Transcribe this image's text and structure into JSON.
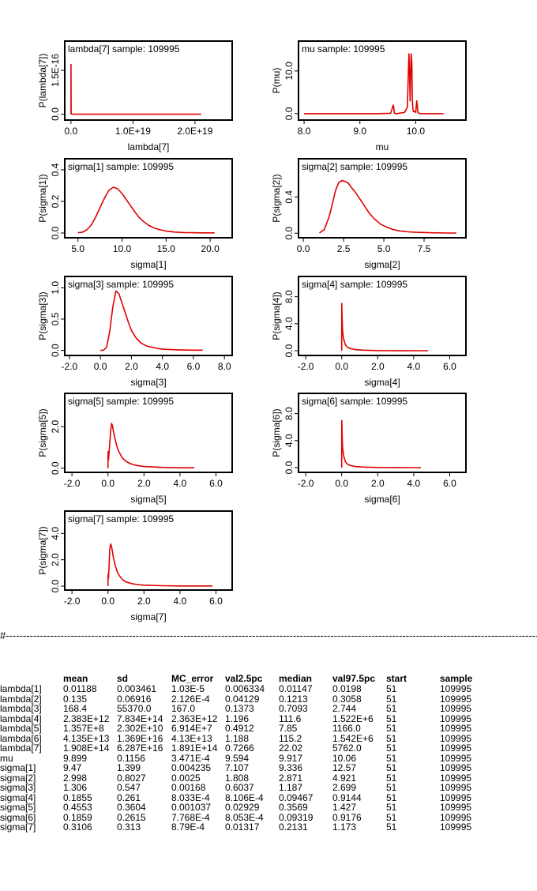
{
  "panels": [
    {
      "id": "lambda7",
      "title": "lambda[7] sample: 109995",
      "xlabel": "lambda[7]",
      "ylabel": "P(lambda[7])",
      "xticks": [
        "0.0",
        "1.0E+19",
        "2.0E+19"
      ],
      "yticks": [
        "0.0",
        "1.5E-16"
      ]
    },
    {
      "id": "mu",
      "title": "mu sample: 109995",
      "xlabel": "mu",
      "ylabel": "P(mu)",
      "xticks": [
        "8.0",
        "9.0",
        "10.0"
      ],
      "yticks": [
        "0.0",
        "10.0"
      ]
    },
    {
      "id": "sigma1",
      "title": "sigma[1] sample: 109995",
      "xlabel": "sigma[1]",
      "ylabel": "P(sigma[1])",
      "xticks": [
        "5.0",
        "10.0",
        "15.0",
        "20.0"
      ],
      "yticks": [
        "0.0",
        "0.2",
        "0.4"
      ]
    },
    {
      "id": "sigma2",
      "title": "sigma[2] sample: 109995",
      "xlabel": "sigma[2]",
      "ylabel": "P(sigma[2])",
      "xticks": [
        "0.0",
        "2.5",
        "5.0",
        "7.5"
      ],
      "yticks": [
        "0.0",
        "0.4"
      ]
    },
    {
      "id": "sigma3",
      "title": "sigma[3] sample: 109995",
      "xlabel": "sigma[3]",
      "ylabel": "P(sigma[3])",
      "xticks": [
        "-2.0",
        "0.0",
        "2.0",
        "4.0",
        "6.0",
        "8.0"
      ],
      "yticks": [
        "0.0",
        "0.5",
        "1.0"
      ]
    },
    {
      "id": "sigma4",
      "title": "sigma[4] sample: 109995",
      "xlabel": "sigma[4]",
      "ylabel": "P(sigma[4])",
      "xticks": [
        "-2.0",
        "0.0",
        "2.0",
        "4.0",
        "6.0"
      ],
      "yticks": [
        "0.0",
        "4.0",
        "8.0"
      ]
    },
    {
      "id": "sigma5",
      "title": "sigma[5] sample: 109995",
      "xlabel": "sigma[5]",
      "ylabel": "P(sigma[5])",
      "xticks": [
        "-2.0",
        "0.0",
        "2.0",
        "4.0",
        "6.0"
      ],
      "yticks": [
        "0.0",
        "2.0"
      ]
    },
    {
      "id": "sigma6",
      "title": "sigma[6] sample: 109995",
      "xlabel": "sigma[6]",
      "ylabel": "P(sigma[6])",
      "xticks": [
        "-2.0",
        "0.0",
        "2.0",
        "4.0",
        "6.0"
      ],
      "yticks": [
        "0.0",
        "4.0",
        "8.0"
      ]
    },
    {
      "id": "sigma7",
      "title": "sigma[7] sample: 109995",
      "xlabel": "sigma[7]",
      "ylabel": "P(sigma[7])",
      "xticks": [
        "-2.0",
        "0.0",
        "2.0",
        "4.0",
        "6.0"
      ],
      "yticks": [
        "0.0",
        "2.0",
        "4.0"
      ]
    }
  ],
  "divider_text": "#------------------------------------------------------------------------------------------------------------------------------------------------------------------------",
  "table": {
    "headers": [
      "",
      "mean",
      "sd",
      "MC_error",
      "val2.5pc",
      "median",
      "val97.5pc",
      "start",
      "sample"
    ],
    "rows": [
      [
        "lambda[1]",
        "0.01188",
        "0.003461",
        "1.03E-5",
        "0.006334",
        "0.01147",
        "0.0198",
        "51",
        "109995"
      ],
      [
        "lambda[2]",
        "0.135",
        "0.06916",
        "2.126E-4",
        "0.04129",
        "0.1213",
        "0.3058",
        "51",
        "109995"
      ],
      [
        "lambda[3]",
        "168.4",
        "55370.0",
        "167.0",
        "0.1373",
        "0.7093",
        "2.744",
        "51",
        "109995"
      ],
      [
        "lambda[4]",
        "2.383E+12",
        "7.834E+14",
        "2.363E+12",
        "1.196",
        "111.6",
        "1.522E+6",
        "51",
        "109995"
      ],
      [
        "lambda[5]",
        "1.357E+8",
        "2.302E+10",
        "6.914E+7",
        "0.4912",
        "7.85",
        "1166.0",
        "51",
        "109995"
      ],
      [
        "lambda[6]",
        "4.135E+13",
        "1.369E+16",
        "4.13E+13",
        "1.188",
        "115.2",
        "1.542E+6",
        "51",
        "109995"
      ],
      [
        "lambda[7]",
        "1.908E+14",
        "6.287E+16",
        "1.891E+14",
        "0.7266",
        "22.02",
        "5762.0",
        "51",
        "109995"
      ],
      [
        "mu",
        "9.899",
        "0.1156",
        "3.471E-4",
        "9.594",
        "9.917",
        "10.06",
        "51",
        "109995"
      ],
      [
        "sigma[1]",
        "9.47",
        "1.399",
        "0.004235",
        "7.107",
        "9.336",
        "12.57",
        "51",
        "109995"
      ],
      [
        "sigma[2]",
        "2.998",
        "0.8027",
        "0.0025",
        "1.808",
        "2.871",
        "4.921",
        "51",
        "109995"
      ],
      [
        "sigma[3]",
        "1.306",
        "0.547",
        "0.00168",
        "0.6037",
        "1.187",
        "2.699",
        "51",
        "109995"
      ],
      [
        "sigma[4]",
        "0.1855",
        "0.261",
        "8.033E-4",
        "8.106E-4",
        "0.09467",
        "0.9144",
        "51",
        "109995"
      ],
      [
        "sigma[5]",
        "0.4553",
        "0.3604",
        "0.001037",
        "0.02929",
        "0.3569",
        "1.427",
        "51",
        "109995"
      ],
      [
        "sigma[6]",
        "0.1859",
        "0.2615",
        "7.768E-4",
        "8.053E-4",
        "0.09319",
        "0.9176",
        "51",
        "109995"
      ],
      [
        "sigma[7]",
        "0.3106",
        "0.313",
        "8.79E-4",
        "0.01317",
        "0.2131",
        "1.173",
        "51",
        "109995"
      ]
    ]
  },
  "chart_data": [
    {
      "type": "line",
      "title": "lambda[7] sample: 109995",
      "xlabel": "lambda[7]",
      "ylabel": "P(lambda[7])",
      "xlim": [
        -1e+18,
        2.6e+19
      ],
      "ylim": [
        -2e-17,
        2.5e-16
      ],
      "color": "#e00000",
      "x": [
        0,
        0,
        3e+16,
        2e+17,
        2.1e+19
      ],
      "y": [
        0,
        1.7e-16,
        1e-18,
        0,
        0
      ]
    },
    {
      "type": "line",
      "title": "mu sample: 109995",
      "xlabel": "mu",
      "ylabel": "P(mu)",
      "xlim": [
        7.9,
        10.9
      ],
      "ylim": [
        -1.5,
        17
      ],
      "color": "#e00000",
      "x": [
        8.0,
        9.3,
        9.55,
        9.6,
        9.62,
        9.65,
        9.8,
        9.85,
        9.87,
        9.88,
        9.89,
        9.9,
        9.91,
        9.92,
        9.93,
        9.94,
        9.95,
        9.96,
        9.98,
        10.0,
        10.02,
        10.04,
        10.06,
        10.1,
        10.2,
        10.4,
        10.5
      ],
      "y": [
        0,
        0,
        0.1,
        2,
        0.1,
        0,
        0.3,
        1.5,
        10,
        14,
        10,
        3,
        9,
        14,
        12,
        3,
        1,
        0.5,
        0.5,
        0.3,
        3,
        0.3,
        0.1,
        0,
        0,
        0,
        0
      ]
    },
    {
      "type": "line",
      "title": "sigma[1] sample: 109995",
      "xlabel": "sigma[1]",
      "ylabel": "P(sigma[1])",
      "xlim": [
        3.5,
        22.5
      ],
      "ylim": [
        -0.03,
        0.47
      ],
      "color": "#e00000",
      "x": [
        5.0,
        5.5,
        6,
        6.5,
        7,
        7.5,
        8,
        8.5,
        9,
        9.5,
        10,
        10.5,
        11,
        11.5,
        12,
        12.5,
        13,
        13.5,
        14,
        15,
        16,
        17,
        18,
        19,
        20.5
      ],
      "y": [
        0.002,
        0.005,
        0.02,
        0.05,
        0.1,
        0.16,
        0.22,
        0.27,
        0.29,
        0.28,
        0.25,
        0.21,
        0.17,
        0.13,
        0.095,
        0.07,
        0.05,
        0.035,
        0.025,
        0.012,
        0.006,
        0.003,
        0.002,
        0.001,
        0.001
      ]
    },
    {
      "type": "line",
      "title": "sigma[2] sample: 109995",
      "xlabel": "sigma[2]",
      "ylabel": "P(sigma[2])",
      "xlim": [
        -0.3,
        10.1
      ],
      "ylim": [
        -0.05,
        0.82
      ],
      "color": "#e00000",
      "x": [
        1.0,
        1.3,
        1.6,
        1.8,
        2.0,
        2.2,
        2.4,
        2.6,
        2.8,
        3.0,
        3.2,
        3.5,
        3.8,
        4.1,
        4.4,
        4.8,
        5.2,
        5.6,
        6.0,
        6.5,
        7.0,
        8.0,
        9.0,
        9.5
      ],
      "y": [
        0.002,
        0.04,
        0.18,
        0.32,
        0.47,
        0.56,
        0.58,
        0.57,
        0.55,
        0.5,
        0.46,
        0.38,
        0.3,
        0.22,
        0.16,
        0.1,
        0.065,
        0.04,
        0.025,
        0.015,
        0.01,
        0.005,
        0.002,
        0.001
      ]
    },
    {
      "type": "line",
      "title": "sigma[3] sample: 109995",
      "xlabel": "sigma[3]",
      "ylabel": "P(sigma[3])",
      "xlim": [
        -2.3,
        8.5
      ],
      "ylim": [
        -0.08,
        1.18
      ],
      "color": "#e00000",
      "x": [
        0.0,
        0.2,
        0.4,
        0.6,
        0.8,
        1.0,
        1.2,
        1.4,
        1.6,
        1.8,
        2.0,
        2.3,
        2.6,
        3.0,
        3.5,
        4.0,
        5.0,
        6.0,
        6.6
      ],
      "y": [
        0,
        0.005,
        0.05,
        0.3,
        0.7,
        0.95,
        0.9,
        0.75,
        0.6,
        0.45,
        0.32,
        0.2,
        0.12,
        0.07,
        0.04,
        0.02,
        0.01,
        0.005,
        0.005
      ]
    },
    {
      "type": "line",
      "title": "sigma[4] sample: 109995",
      "xlabel": "sigma[4]",
      "ylabel": "P(sigma[4])",
      "xlim": [
        -2.4,
        6.9
      ],
      "ylim": [
        -0.7,
        11
      ],
      "color": "#e00000",
      "x": [
        0.0,
        0.005,
        0.02,
        0.05,
        0.1,
        0.2,
        0.3,
        0.5,
        0.8,
        1.2,
        2.0,
        3.0,
        4.0,
        4.8
      ],
      "y": [
        0,
        7.0,
        5.0,
        3.0,
        1.8,
        0.9,
        0.55,
        0.3,
        0.15,
        0.08,
        0.03,
        0.01,
        0.005,
        0.005
      ]
    },
    {
      "type": "line",
      "title": "sigma[5] sample: 109995",
      "xlabel": "sigma[5]",
      "ylabel": "P(sigma[5])",
      "xlim": [
        -2.4,
        6.9
      ],
      "ylim": [
        -0.2,
        3.6
      ],
      "color": "#e00000",
      "x": [
        0.0,
        0.01,
        0.03,
        0.05,
        0.1,
        0.15,
        0.2,
        0.25,
        0.3,
        0.4,
        0.5,
        0.6,
        0.8,
        1.0,
        1.3,
        1.6,
        2.0,
        3.0,
        4.0,
        4.8
      ],
      "y": [
        0,
        0.8,
        0.4,
        0.6,
        1.2,
        1.8,
        2.15,
        2.05,
        1.8,
        1.4,
        1.05,
        0.8,
        0.5,
        0.33,
        0.2,
        0.13,
        0.08,
        0.04,
        0.02,
        0.02
      ]
    },
    {
      "type": "line",
      "title": "sigma[6] sample: 109995",
      "xlabel": "sigma[6]",
      "ylabel": "P(sigma[6])",
      "xlim": [
        -2.4,
        6.9
      ],
      "ylim": [
        -0.7,
        11
      ],
      "color": "#e00000",
      "x": [
        0.0,
        0.005,
        0.02,
        0.05,
        0.1,
        0.2,
        0.3,
        0.5,
        0.8,
        1.2,
        2.0,
        3.0,
        4.0,
        4.4
      ],
      "y": [
        0,
        7.0,
        5.0,
        3.0,
        1.8,
        0.9,
        0.55,
        0.3,
        0.15,
        0.08,
        0.03,
        0.01,
        0.005,
        0.005
      ]
    },
    {
      "type": "line",
      "title": "sigma[7] sample: 109995",
      "xlabel": "sigma[7]",
      "ylabel": "P(sigma[7])",
      "xlim": [
        -2.4,
        6.9
      ],
      "ylim": [
        -0.3,
        5.7
      ],
      "color": "#e00000",
      "x": [
        0.0,
        0.01,
        0.03,
        0.06,
        0.1,
        0.15,
        0.2,
        0.3,
        0.4,
        0.5,
        0.6,
        0.8,
        1.0,
        1.3,
        1.6,
        2.0,
        3.0,
        4.0,
        5.0,
        5.8
      ],
      "y": [
        0,
        0.9,
        0.6,
        1.5,
        2.8,
        3.2,
        3.0,
        2.2,
        1.6,
        1.15,
        0.85,
        0.5,
        0.32,
        0.2,
        0.12,
        0.07,
        0.03,
        0.015,
        0.01,
        0.01
      ]
    }
  ]
}
